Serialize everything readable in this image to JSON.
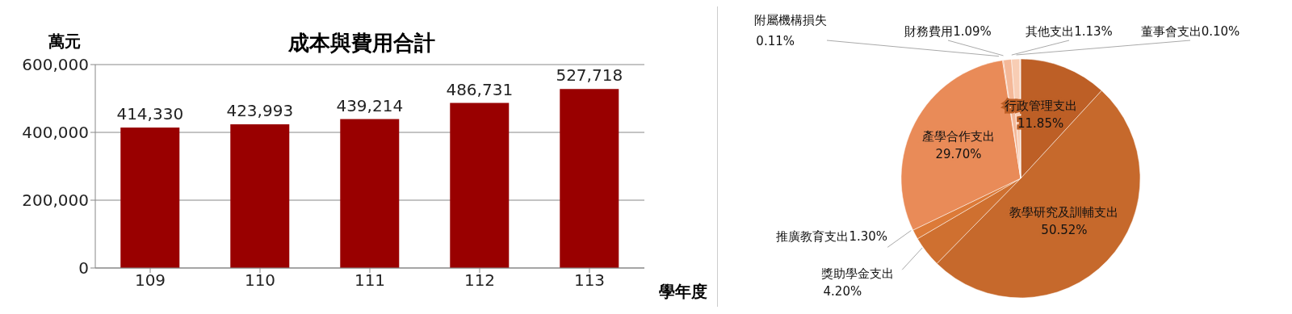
{
  "chart_data": [
    {
      "type": "bar",
      "title": "成本與費用合計",
      "ylabel": "萬元",
      "xlabel": "學年度",
      "categories": [
        "109",
        "110",
        "111",
        "112",
        "113"
      ],
      "values": [
        414330,
        423993,
        439214,
        486731,
        527718
      ],
      "value_labels": [
        "414,330",
        "423,993",
        "439,214",
        "486,731",
        "527,718"
      ],
      "color": "#990000",
      "ylim": [
        0,
        600000
      ],
      "yticks": [
        {
          "value": 0,
          "label": "0"
        },
        {
          "value": 200000,
          "label": "200,000"
        },
        {
          "value": 400000,
          "label": "400,000"
        },
        {
          "value": 600000,
          "label": "600,000"
        }
      ],
      "grid": "y",
      "legend": false
    },
    {
      "type": "pie",
      "categories": [
        "行政管理支出",
        "教學研究及訓輔支出",
        "獎助學金支出",
        "推廣教育支出",
        "產學合作支出",
        "附屬機構損失",
        "財務費用",
        "其他支出",
        "董事會支出"
      ],
      "values": [
        11.85,
        50.52,
        4.2,
        1.3,
        29.7,
        0.11,
        1.09,
        1.13,
        0.1
      ],
      "value_labels": [
        "11.85%",
        "50.52%",
        "4.20%",
        "1.30%",
        "29.70%",
        "0.11%",
        "1.09%",
        "1.13%",
        "0.10%"
      ],
      "colors": [
        "#bd5f26",
        "#c6692c",
        "#cf7030",
        "#dc7a38",
        "#e98b58",
        "#f09a6c",
        "#f4b898",
        "#f8cdb4",
        "#fbe1d2"
      ],
      "legend": false
    }
  ]
}
